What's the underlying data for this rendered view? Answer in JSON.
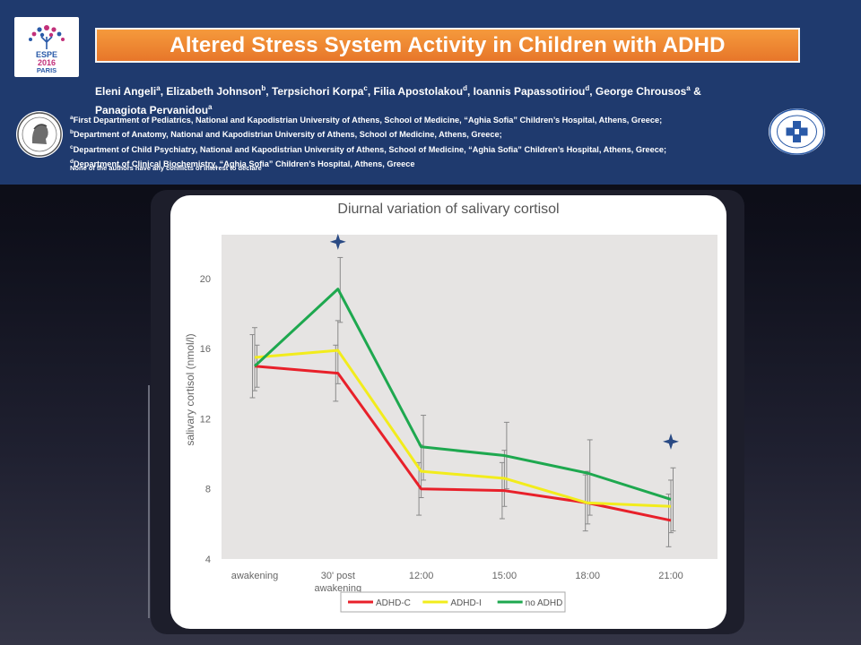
{
  "header": {
    "title": "Altered Stress System Activity in Children with ADHD",
    "espe_logo": {
      "line1": "ESPE",
      "line2": "2016",
      "line3": "PARIS"
    },
    "authors": [
      {
        "name": "Eleni Angeli",
        "sup": "a"
      },
      {
        "name": "Elizabeth Johnson",
        "sup": "b"
      },
      {
        "name": "Terpsichori Korpa",
        "sup": "c"
      },
      {
        "name": "Filia Apostolakou",
        "sup": "d"
      },
      {
        "name": "Ioannis Papassotiriou",
        "sup": "d"
      },
      {
        "name": "George Chrousos",
        "sup": "a"
      },
      {
        "name": "Panagiota Pervanidou",
        "sup": "a"
      }
    ],
    "affiliations": [
      {
        "sup": "a",
        "text": "First Department of Pediatrics, National and Kapodistrian University of Athens, School of Medicine, “Aghia Sofia” Children’s Hospital, Athens, Greece;"
      },
      {
        "sup": "b",
        "text": "Department of Anatomy, National and Kapodistrian University of Athens, School of Medicine, Athens, Greece;"
      },
      {
        "sup": "c",
        "text": "Department of Child Psychiatry, National and Kapodistrian University of Athens, School of Medicine, “Aghia Sofia” Children’s Hospital, Athens, Greece;"
      },
      {
        "sup": "d",
        "text": "Department of Clinical Biochemistry, “Aghia Sofia” Children’s Hospital, Athens, Greece"
      }
    ],
    "conflict": "None of the authors have any conflicts of interest to declare"
  },
  "colors": {
    "header_bg": "#1f3a6e",
    "title_bg": "#ee8530",
    "adhd_c": "#e8202a",
    "adhd_i": "#f2ec1c",
    "no_adhd": "#1ea84f",
    "marker": "#2a4a84"
  },
  "chart_data": {
    "type": "line",
    "title": "Diurnal variation of salivary cortisol",
    "ylabel": "salivary cortisol (nmol/l)",
    "xlabel": "",
    "categories": [
      "awakening",
      "30' post awakening",
      "12:00",
      "15:00",
      "18:00",
      "21:00"
    ],
    "ylim": [
      4,
      22.5
    ],
    "yticks": [
      4,
      8,
      12,
      16,
      20
    ],
    "grid": false,
    "legend": "bottom",
    "series": [
      {
        "name": "ADHD-C",
        "color": "#e8202a",
        "values": [
          15.0,
          14.6,
          8.0,
          7.9,
          7.2,
          6.2
        ]
      },
      {
        "name": "ADHD-I",
        "color": "#f2ec1c",
        "values": [
          15.5,
          15.9,
          9.0,
          8.6,
          7.2,
          7.0
        ]
      },
      {
        "name": "no ADHD",
        "color": "#1ea84f",
        "values": [
          15.0,
          19.4,
          10.4,
          9.9,
          8.9,
          7.4
        ]
      }
    ],
    "error_bars": [
      {
        "category": "awakening",
        "ranges": [
          [
            13.2,
            16.8
          ],
          [
            13.6,
            17.2
          ],
          [
            13.8,
            16.2
          ]
        ]
      },
      {
        "category": "30' post awakening",
        "ranges": [
          [
            13.0,
            16.2
          ],
          [
            14.0,
            17.6
          ],
          [
            17.5,
            21.2
          ]
        ]
      },
      {
        "category": "12:00",
        "ranges": [
          [
            6.5,
            9.5
          ],
          [
            7.5,
            10.5
          ],
          [
            8.5,
            12.2
          ]
        ]
      },
      {
        "category": "15:00",
        "ranges": [
          [
            6.3,
            9.5
          ],
          [
            7.0,
            10.2
          ],
          [
            8.0,
            11.8
          ]
        ]
      },
      {
        "category": "18:00",
        "ranges": [
          [
            5.6,
            8.8
          ],
          [
            6.0,
            9.0
          ],
          [
            6.5,
            10.8
          ]
        ]
      },
      {
        "category": "21:00",
        "ranges": [
          [
            4.7,
            7.7
          ],
          [
            5.5,
            8.5
          ],
          [
            5.6,
            9.2
          ]
        ]
      }
    ],
    "significance_markers": [
      {
        "category": "30' post awakening",
        "y": 22.1
      },
      {
        "category": "21:00",
        "y": 10.7
      }
    ]
  }
}
